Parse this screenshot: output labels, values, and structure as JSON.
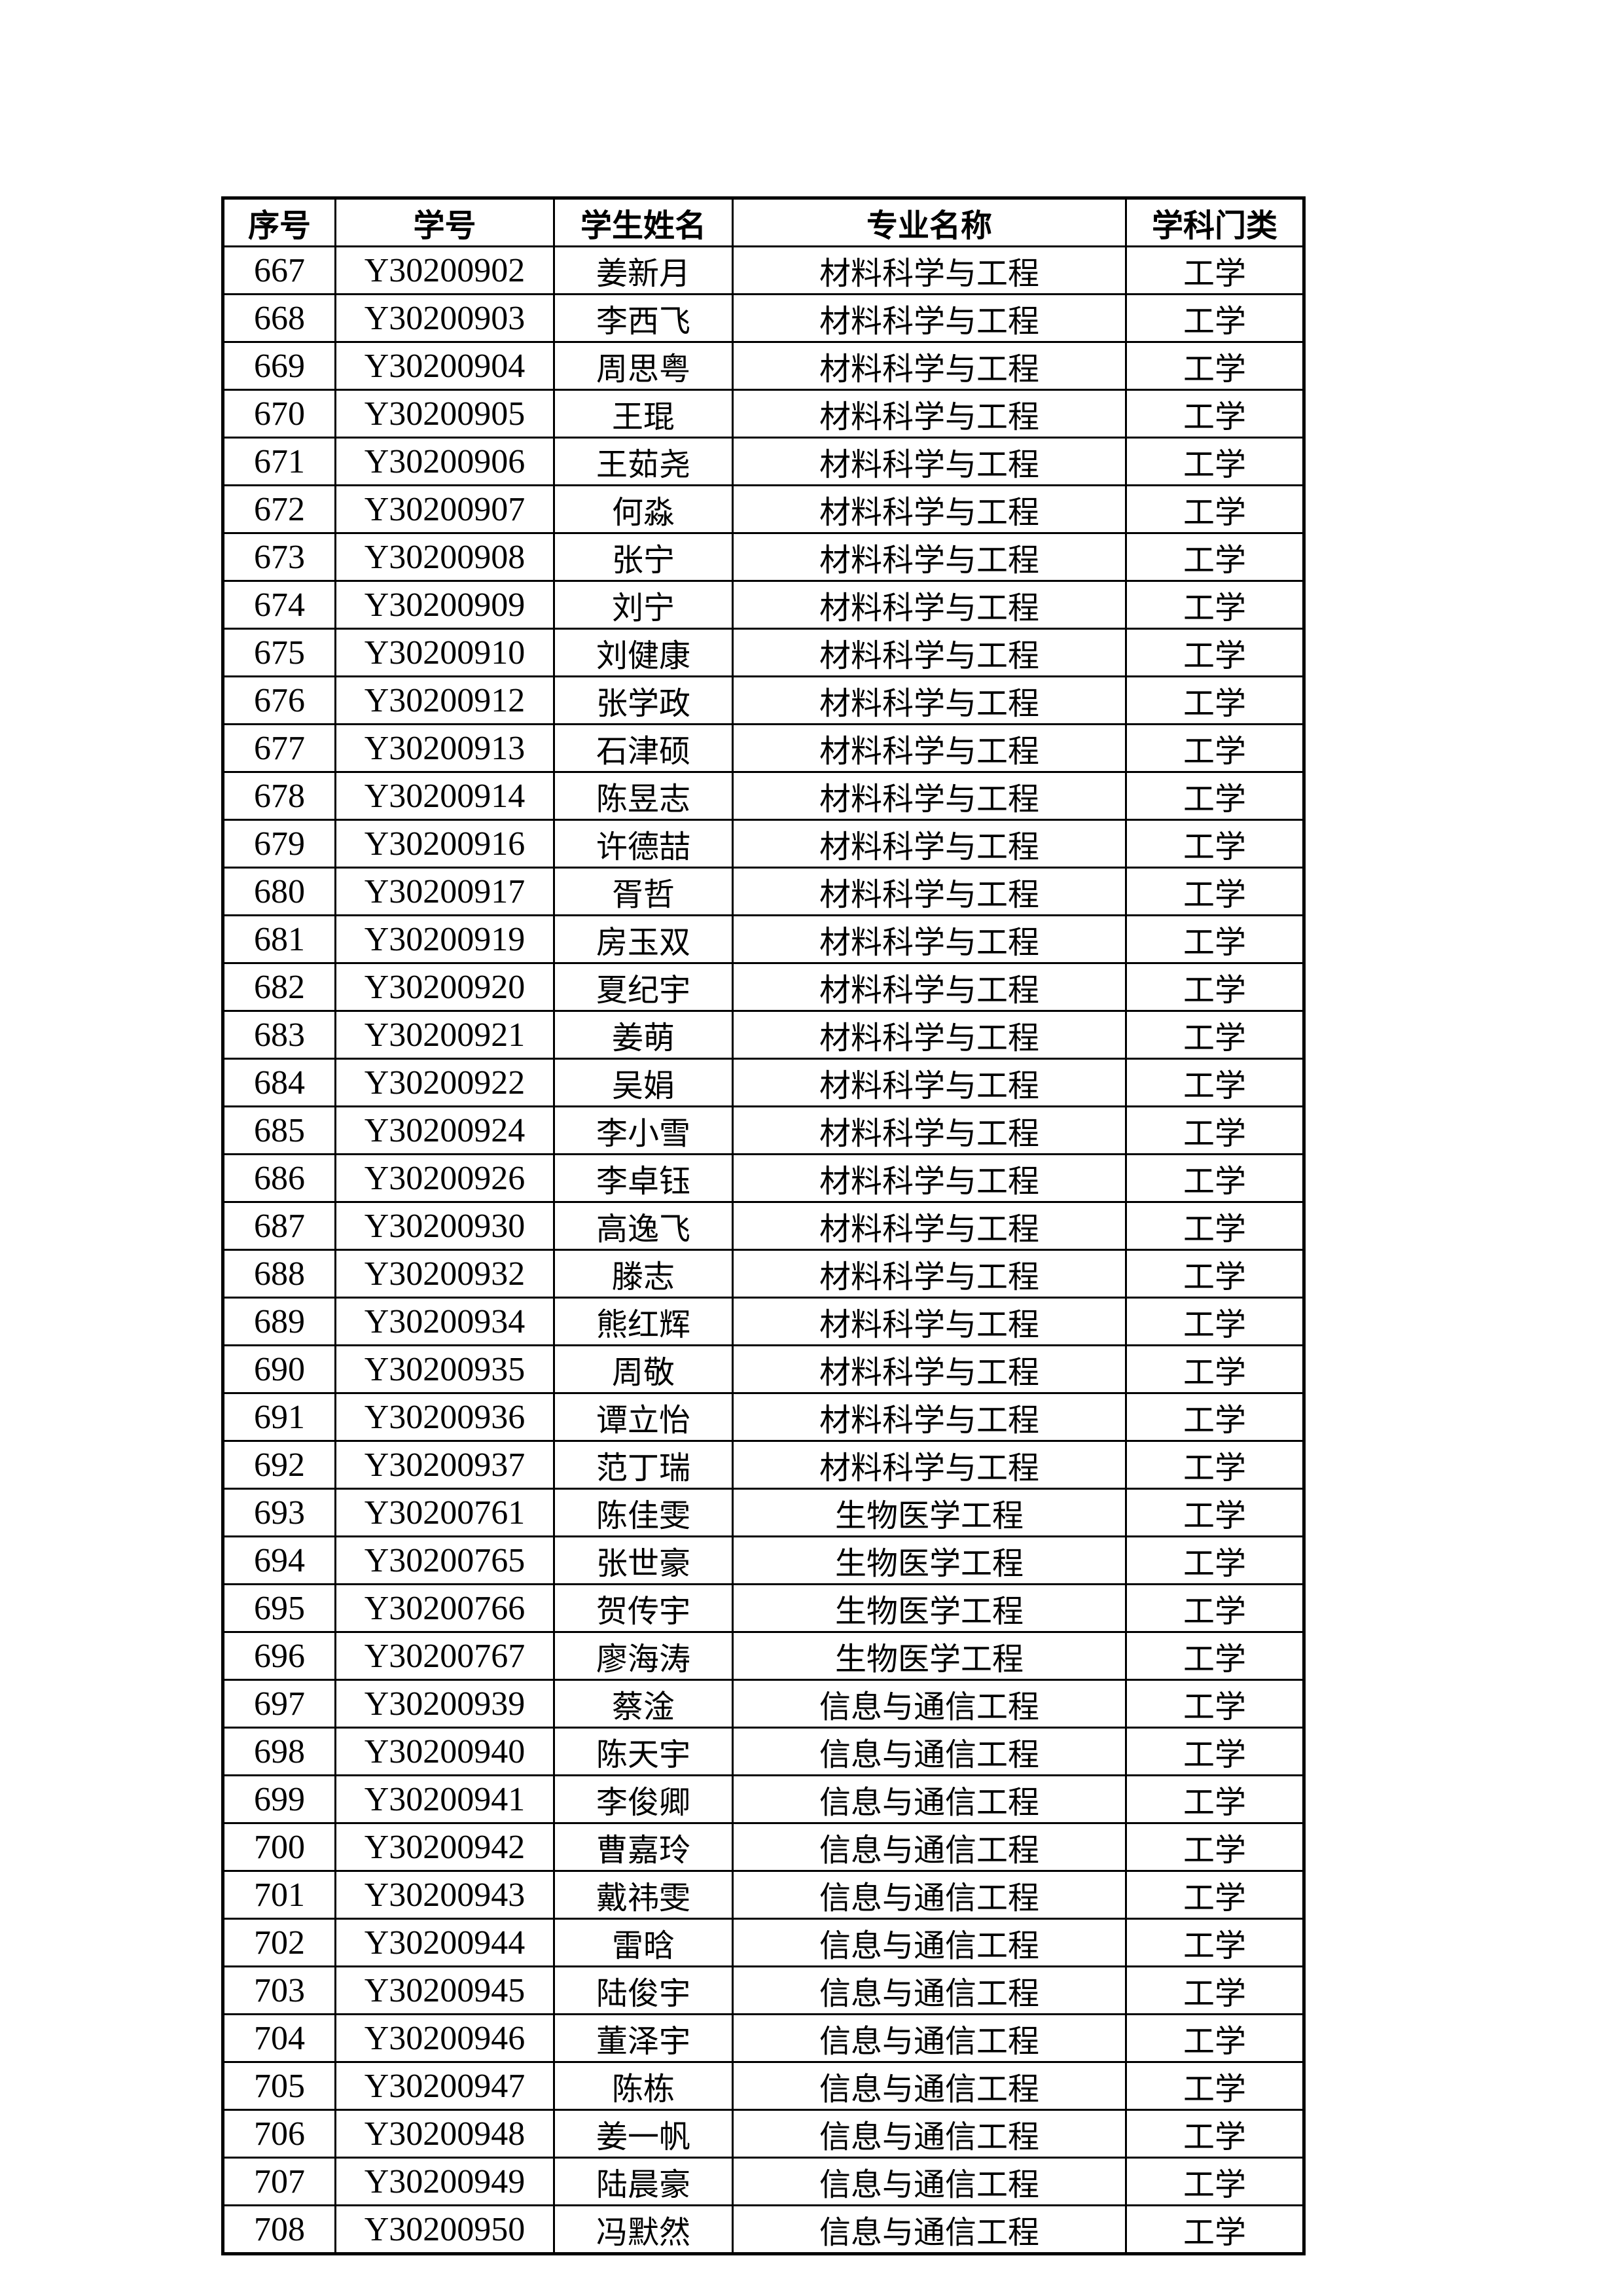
{
  "page": {
    "background_color": "#ffffff",
    "text_color": "#000000",
    "border_color": "#000000"
  },
  "table": {
    "headers": [
      "序号",
      "学号",
      "学生姓名",
      "专业名称",
      "学科门类"
    ],
    "rows": [
      [
        "667",
        "Y30200902",
        "姜新月",
        "材料科学与工程",
        "工学"
      ],
      [
        "668",
        "Y30200903",
        "李西飞",
        "材料科学与工程",
        "工学"
      ],
      [
        "669",
        "Y30200904",
        "周思粤",
        "材料科学与工程",
        "工学"
      ],
      [
        "670",
        "Y30200905",
        "王琨",
        "材料科学与工程",
        "工学"
      ],
      [
        "671",
        "Y30200906",
        "王茹尧",
        "材料科学与工程",
        "工学"
      ],
      [
        "672",
        "Y30200907",
        "何淼",
        "材料科学与工程",
        "工学"
      ],
      [
        "673",
        "Y30200908",
        "张宁",
        "材料科学与工程",
        "工学"
      ],
      [
        "674",
        "Y30200909",
        "刘宁",
        "材料科学与工程",
        "工学"
      ],
      [
        "675",
        "Y30200910",
        "刘健康",
        "材料科学与工程",
        "工学"
      ],
      [
        "676",
        "Y30200912",
        "张学政",
        "材料科学与工程",
        "工学"
      ],
      [
        "677",
        "Y30200913",
        "石津硕",
        "材料科学与工程",
        "工学"
      ],
      [
        "678",
        "Y30200914",
        "陈昱志",
        "材料科学与工程",
        "工学"
      ],
      [
        "679",
        "Y30200916",
        "许德喆",
        "材料科学与工程",
        "工学"
      ],
      [
        "680",
        "Y30200917",
        "胥哲",
        "材料科学与工程",
        "工学"
      ],
      [
        "681",
        "Y30200919",
        "房玉双",
        "材料科学与工程",
        "工学"
      ],
      [
        "682",
        "Y30200920",
        "夏纪宇",
        "材料科学与工程",
        "工学"
      ],
      [
        "683",
        "Y30200921",
        "姜萌",
        "材料科学与工程",
        "工学"
      ],
      [
        "684",
        "Y30200922",
        "吴娟",
        "材料科学与工程",
        "工学"
      ],
      [
        "685",
        "Y30200924",
        "李小雪",
        "材料科学与工程",
        "工学"
      ],
      [
        "686",
        "Y30200926",
        "李卓钰",
        "材料科学与工程",
        "工学"
      ],
      [
        "687",
        "Y30200930",
        "高逸飞",
        "材料科学与工程",
        "工学"
      ],
      [
        "688",
        "Y30200932",
        "滕志",
        "材料科学与工程",
        "工学"
      ],
      [
        "689",
        "Y30200934",
        "熊红辉",
        "材料科学与工程",
        "工学"
      ],
      [
        "690",
        "Y30200935",
        "周敬",
        "材料科学与工程",
        "工学"
      ],
      [
        "691",
        "Y30200936",
        "谭立怡",
        "材料科学与工程",
        "工学"
      ],
      [
        "692",
        "Y30200937",
        "范丁瑞",
        "材料科学与工程",
        "工学"
      ],
      [
        "693",
        "Y30200761",
        "陈佳雯",
        "生物医学工程",
        "工学"
      ],
      [
        "694",
        "Y30200765",
        "张世豪",
        "生物医学工程",
        "工学"
      ],
      [
        "695",
        "Y30200766",
        "贺传宇",
        "生物医学工程",
        "工学"
      ],
      [
        "696",
        "Y30200767",
        "廖海涛",
        "生物医学工程",
        "工学"
      ],
      [
        "697",
        "Y30200939",
        "蔡淦",
        "信息与通信工程",
        "工学"
      ],
      [
        "698",
        "Y30200940",
        "陈天宇",
        "信息与通信工程",
        "工学"
      ],
      [
        "699",
        "Y30200941",
        "李俊卿",
        "信息与通信工程",
        "工学"
      ],
      [
        "700",
        "Y30200942",
        "曹嘉玲",
        "信息与通信工程",
        "工学"
      ],
      [
        "701",
        "Y30200943",
        "戴祎雯",
        "信息与通信工程",
        "工学"
      ],
      [
        "702",
        "Y30200944",
        "雷晗",
        "信息与通信工程",
        "工学"
      ],
      [
        "703",
        "Y30200945",
        "陆俊宇",
        "信息与通信工程",
        "工学"
      ],
      [
        "704",
        "Y30200946",
        "董泽宇",
        "信息与通信工程",
        "工学"
      ],
      [
        "705",
        "Y30200947",
        "陈栋",
        "信息与通信工程",
        "工学"
      ],
      [
        "706",
        "Y30200948",
        "姜一帆",
        "信息与通信工程",
        "工学"
      ],
      [
        "707",
        "Y30200949",
        "陆晨豪",
        "信息与通信工程",
        "工学"
      ],
      [
        "708",
        "Y30200950",
        "冯默然",
        "信息与通信工程",
        "工学"
      ]
    ]
  }
}
